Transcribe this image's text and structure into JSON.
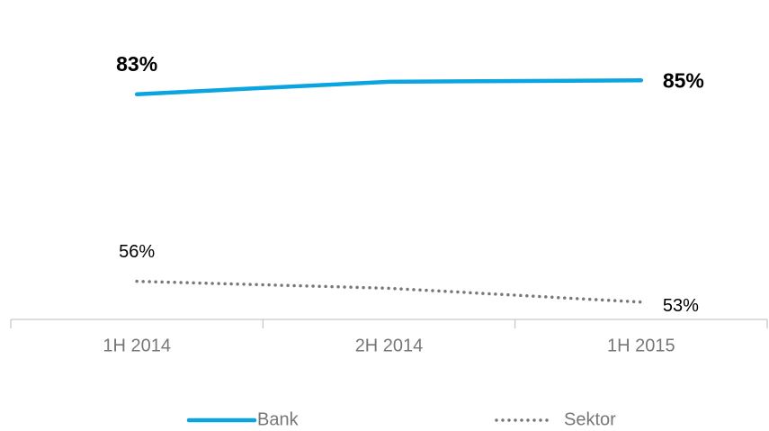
{
  "chart_data": {
    "type": "line",
    "categories": [
      "1H 2014",
      "2H 2014",
      "1H 2015"
    ],
    "series": [
      {
        "name": "Bank",
        "color": "#0aa5e0",
        "style": "solid",
        "values": [
          83,
          84.8,
          85
        ],
        "value_labels": [
          "83%",
          null,
          "85%"
        ]
      },
      {
        "name": "Sektor",
        "color": "#777777",
        "style": "dotted",
        "values": [
          56,
          55,
          53
        ],
        "value_labels": [
          "56%",
          null,
          "53%"
        ]
      }
    ],
    "ylim": [
      50.5,
      94
    ]
  }
}
